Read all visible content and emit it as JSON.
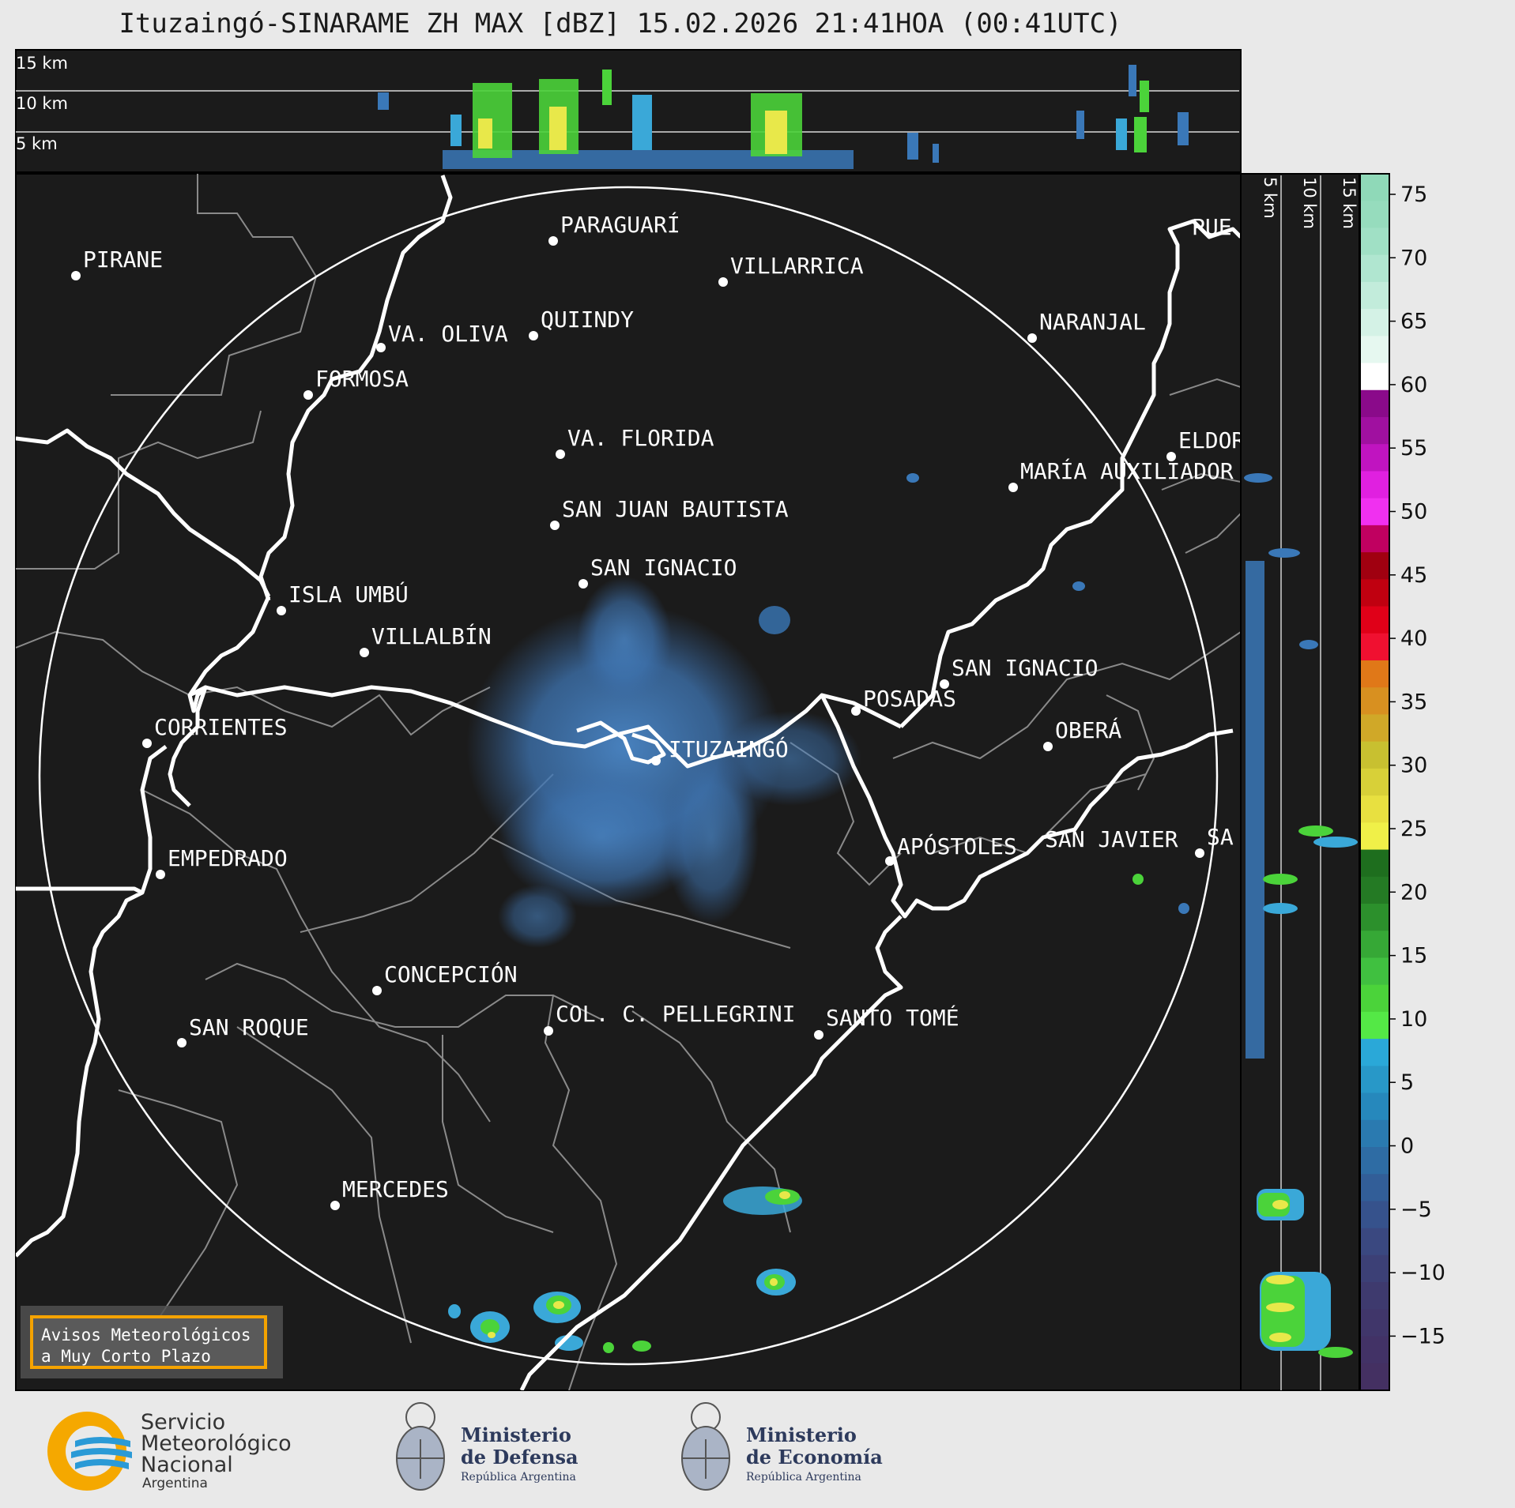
{
  "title": "Ituzaingó-SINARAME ZH MAX [dBZ] 15.02.2026 21:41HOA (00:41UTC)",
  "top_panel": {
    "height_labels": [
      "15 km",
      "10 km",
      "5 km"
    ]
  },
  "side_panel": {
    "height_labels": [
      "5 km",
      "10 km",
      "15 km"
    ]
  },
  "cities": [
    {
      "name": "PIRANE"
    },
    {
      "name": "PARAGUARÍ"
    },
    {
      "name": "VILLARRICA"
    },
    {
      "name": "QUIINDY"
    },
    {
      "name": "VA. OLIVA"
    },
    {
      "name": "NARANJAL"
    },
    {
      "name": "FORMOSA"
    },
    {
      "name": "VA. FLORIDA"
    },
    {
      "name": "ELDOR"
    },
    {
      "name": "MARÍA AUXILIADOR"
    },
    {
      "name": "SAN JUAN BAUTISTA"
    },
    {
      "name": "SAN IGNACIO"
    },
    {
      "name": "ISLA UMBÚ"
    },
    {
      "name": "VILLALBÍN"
    },
    {
      "name": "SAN IGNACIO"
    },
    {
      "name": "POSADAS"
    },
    {
      "name": "CORRIENTES"
    },
    {
      "name": "ITUZAINGÓ"
    },
    {
      "name": "OBERÁ"
    },
    {
      "name": "EMPEDRADO"
    },
    {
      "name": "APÓSTOLES"
    },
    {
      "name": "SAN JAVIER"
    },
    {
      "name": "SA"
    },
    {
      "name": "CONCEPCIÓN"
    },
    {
      "name": "COL. C. PELLEGRINI"
    },
    {
      "name": "SANTO TOMÉ"
    },
    {
      "name": "SAN ROQUE"
    },
    {
      "name": "MERCEDES"
    },
    {
      "name": "PUE"
    }
  ],
  "colorbar": {
    "ticks": [
      "75",
      "70",
      "65",
      "60",
      "55",
      "50",
      "45",
      "40",
      "35",
      "30",
      "25",
      "20",
      "15",
      "10",
      "5",
      "0",
      "−5",
      "−10",
      "−15"
    ],
    "colors": {
      "bg_map": "#1b1b1b",
      "border": "#ffffff",
      "echo_blue": "#3a78b8",
      "echo_green": "#4bd33a",
      "echo_yellow": "#e8e84a"
    }
  },
  "avisos": {
    "line1": "Avisos Meteorológicos",
    "line2": "a Muy Corto Plazo"
  },
  "logos": {
    "smn_line1": "Servicio",
    "smn_line2": "Meteorológico",
    "smn_line3": "Nacional",
    "smn_line4": "Argentina",
    "defensa_line1": "Ministerio",
    "defensa_line2": "de Defensa",
    "defensa_sub": "República Argentina",
    "economia_line1": "Ministerio",
    "economia_line2": "de Economía",
    "economia_sub": "República Argentina"
  }
}
